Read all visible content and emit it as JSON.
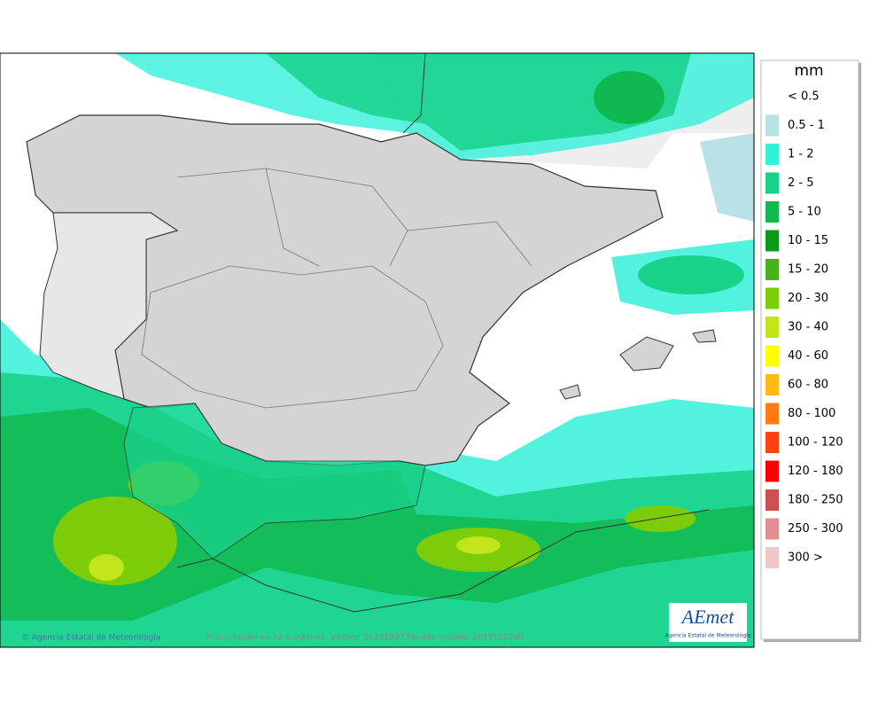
{
  "map": {
    "footer_credit": "© Agencia Estatal de Meteorología",
    "footer_caption": "Precipitación en 24 h máxima. Validez: 20251027 Pasada modelo: 2025102700",
    "logo_text": "AEmet",
    "logo_subtext": "Agencia Estatal de Meteorología"
  },
  "legend": {
    "unit": "mm",
    "items": [
      {
        "label": "< 0.5",
        "color": null
      },
      {
        "label": "0.5 - 1",
        "color": "#b8e2e6"
      },
      {
        "label": "1 - 2",
        "color": "#33f0d8"
      },
      {
        "label": "2 - 5",
        "color": "#19d28a"
      },
      {
        "label": "5 - 10",
        "color": "#10b850"
      },
      {
        "label": "10 - 15",
        "color": "#0a9a16"
      },
      {
        "label": "15 - 20",
        "color": "#44b41a"
      },
      {
        "label": "20 - 30",
        "color": "#7dcc0a"
      },
      {
        "label": "30 - 40",
        "color": "#c2e41a"
      },
      {
        "label": "40 - 60",
        "color": "#ffff00"
      },
      {
        "label": "60 - 80",
        "color": "#ffbb10"
      },
      {
        "label": "80 - 100",
        "color": "#ff7a10"
      },
      {
        "label": "100 - 120",
        "color": "#ff4010"
      },
      {
        "label": "120 - 180",
        "color": "#ff0000"
      },
      {
        "label": "180 - 250",
        "color": "#cc5050"
      },
      {
        "label": "250 - 300",
        "color": "#e09090"
      },
      {
        "label": "300 >",
        "color": "#f0c8c8"
      }
    ]
  }
}
